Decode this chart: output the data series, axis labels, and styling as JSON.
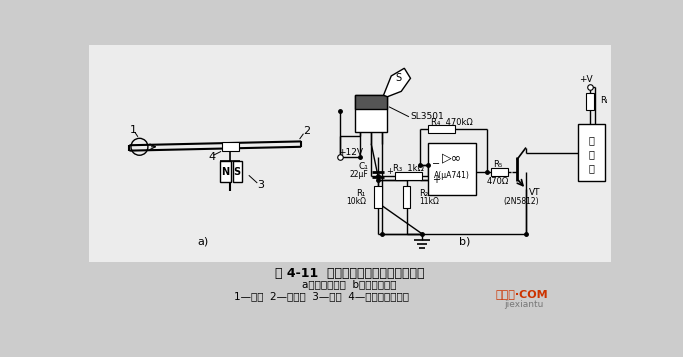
{
  "title": "图 4-11  霍尔计数装置示意图和电路图",
  "subtitle_a": "a）结构示意图  b）电路原理图",
  "subtitle_b": "1—钢球  2—绝缘板  3—磁铁  4—霍尔开关传感器",
  "watermark": "接线图·COM",
  "watermark2": "jiexiantu",
  "bg_color": "#d8d8d8",
  "label_a": "a)",
  "label_b": "b)"
}
